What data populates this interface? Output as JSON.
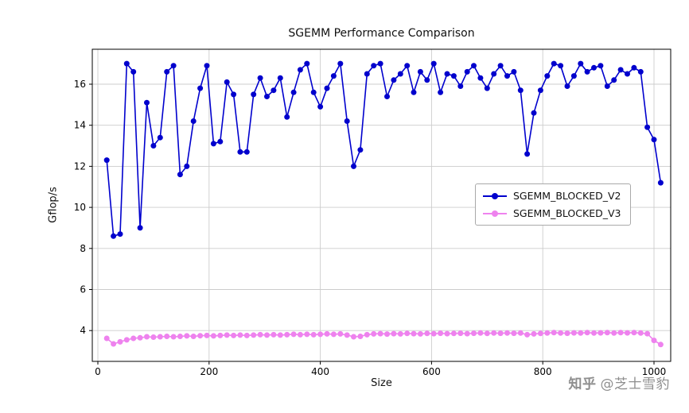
{
  "watermark": {
    "brand": "知乎",
    "handle": "@芝士雪豹"
  },
  "chart_data": {
    "type": "line",
    "title": "SGEMM Performance Comparison",
    "xlabel": "Size",
    "ylabel": "Gflop/s",
    "grid": true,
    "legend_position": "center right",
    "xlim": [
      -10,
      1030
    ],
    "ylim": [
      2.5,
      17.7
    ],
    "xticks": [
      0,
      200,
      400,
      600,
      800,
      1000
    ],
    "yticks": [
      4,
      6,
      8,
      10,
      12,
      14,
      16
    ],
    "axis_color": "#000000",
    "grid_color": "#cccccc",
    "x": [
      16,
      28,
      40,
      52,
      64,
      76,
      88,
      100,
      112,
      124,
      136,
      148,
      160,
      172,
      184,
      196,
      208,
      220,
      232,
      244,
      256,
      268,
      280,
      292,
      304,
      316,
      328,
      340,
      352,
      364,
      376,
      388,
      400,
      412,
      424,
      436,
      448,
      460,
      472,
      484,
      496,
      508,
      520,
      532,
      544,
      556,
      568,
      580,
      592,
      604,
      616,
      628,
      640,
      652,
      664,
      676,
      688,
      700,
      712,
      724,
      736,
      748,
      760,
      772,
      784,
      796,
      808,
      820,
      832,
      844,
      856,
      868,
      880,
      892,
      904,
      916,
      928,
      940,
      952,
      964,
      976,
      988,
      1000,
      1012
    ],
    "series": [
      {
        "name": "SGEMM_BLOCKED_V2",
        "color": "#0000CD",
        "marker": "circle",
        "values": [
          12.3,
          8.6,
          8.7,
          17.0,
          16.6,
          9.0,
          15.1,
          13.0,
          13.4,
          16.6,
          16.9,
          11.6,
          12.0,
          14.2,
          15.8,
          16.9,
          13.1,
          13.2,
          16.1,
          15.5,
          12.7,
          12.7,
          15.5,
          16.3,
          15.4,
          15.7,
          16.3,
          14.4,
          15.6,
          16.7,
          17.0,
          15.6,
          14.9,
          15.8,
          16.4,
          17.0,
          14.2,
          12.0,
          12.8,
          16.5,
          16.9,
          17.0,
          15.4,
          16.2,
          16.5,
          16.9,
          15.6,
          16.6,
          16.2,
          17.0,
          15.6,
          16.5,
          16.4,
          15.9,
          16.6,
          16.9,
          16.3,
          15.8,
          16.5,
          16.9,
          16.4,
          16.6,
          15.7,
          12.6,
          14.6,
          15.7,
          16.4,
          17.0,
          16.9,
          15.9,
          16.4,
          17.0,
          16.6,
          16.8,
          16.9,
          15.9,
          16.2,
          16.7,
          16.5,
          16.8,
          16.6,
          13.9,
          13.3,
          11.2
        ]
      },
      {
        "name": "SGEMM_BLOCKED_V3",
        "color": "#EE82EE",
        "marker": "circle",
        "values": [
          3.62,
          3.35,
          3.45,
          3.55,
          3.62,
          3.65,
          3.7,
          3.68,
          3.7,
          3.72,
          3.7,
          3.72,
          3.74,
          3.72,
          3.75,
          3.76,
          3.74,
          3.76,
          3.78,
          3.76,
          3.78,
          3.76,
          3.78,
          3.8,
          3.78,
          3.8,
          3.78,
          3.8,
          3.82,
          3.8,
          3.82,
          3.8,
          3.82,
          3.84,
          3.82,
          3.84,
          3.78,
          3.7,
          3.72,
          3.8,
          3.84,
          3.85,
          3.83,
          3.85,
          3.84,
          3.86,
          3.85,
          3.84,
          3.86,
          3.85,
          3.87,
          3.85,
          3.86,
          3.87,
          3.85,
          3.87,
          3.88,
          3.86,
          3.88,
          3.87,
          3.88,
          3.87,
          3.88,
          3.8,
          3.84,
          3.86,
          3.88,
          3.9,
          3.88,
          3.87,
          3.89,
          3.88,
          3.9,
          3.88,
          3.89,
          3.9,
          3.88,
          3.9,
          3.89,
          3.9,
          3.88,
          3.85,
          3.52,
          3.32
        ]
      }
    ]
  }
}
